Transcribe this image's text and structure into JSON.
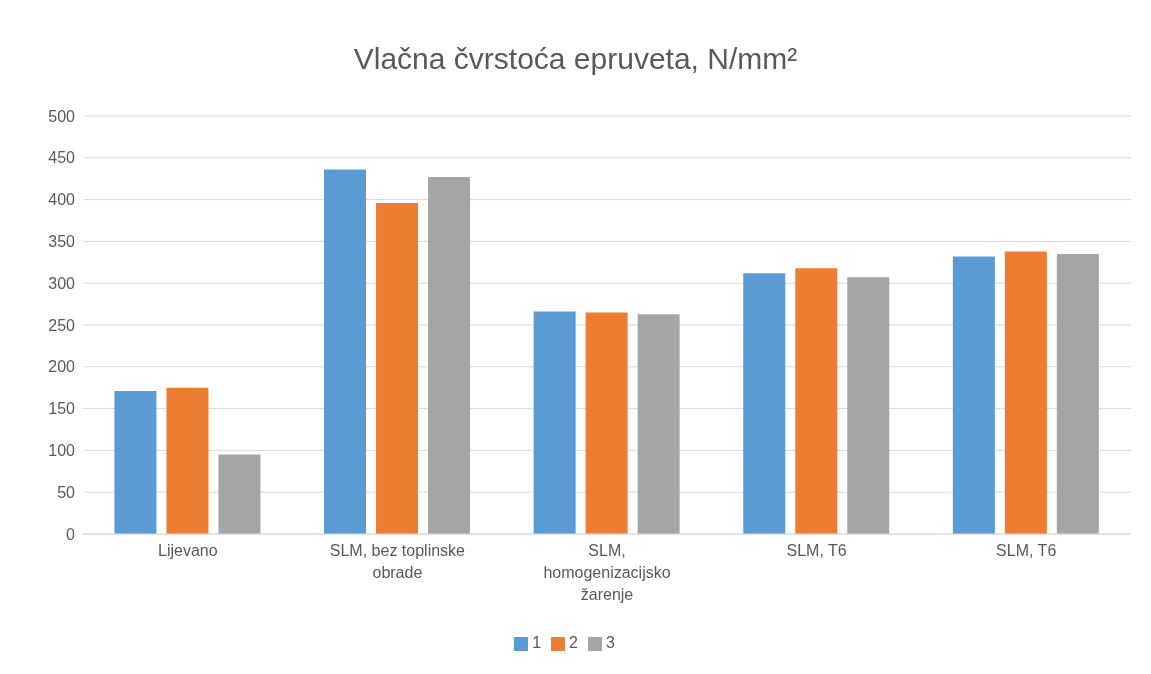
{
  "chart_data": {
    "type": "bar",
    "title": "Vlačna čvrstoća epruveta, N/mm²",
    "categories": [
      "Lijevano",
      "SLM, bez toplinske obrade",
      "SLM, homogenizacijsko žarenje",
      "SLM, T6",
      "SLM, T6"
    ],
    "series": [
      {
        "name": "1",
        "color": "#5b9bd5",
        "values": [
          171,
          436,
          266,
          312,
          332
        ]
      },
      {
        "name": "2",
        "color": "#ed7d31",
        "values": [
          175,
          396,
          265,
          318,
          338
        ]
      },
      {
        "name": "3",
        "color": "#a5a5a5",
        "values": [
          95,
          427,
          263,
          307,
          335
        ]
      }
    ],
    "ylim": [
      0,
      500
    ],
    "yticks": [
      0,
      50,
      100,
      150,
      200,
      250,
      300,
      350,
      400,
      450,
      500
    ],
    "grid": "y",
    "legend": "bottom"
  }
}
